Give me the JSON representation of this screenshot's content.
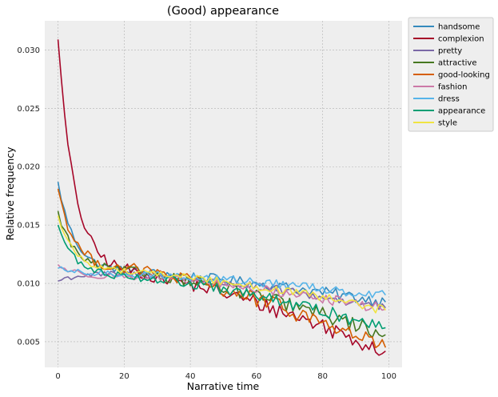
{
  "chart_data": {
    "type": "line",
    "title": "(Good) appearance",
    "xlabel": "Narrative time",
    "ylabel": "Relative frequency",
    "xlim": [
      -4,
      104
    ],
    "ylim": [
      0.0028,
      0.0325
    ],
    "x_ticks": [
      0,
      20,
      40,
      60,
      80,
      100
    ],
    "y_ticks": [
      0.005,
      0.01,
      0.015,
      0.02,
      0.025,
      0.03
    ],
    "x_tick_labels": [
      "0",
      "20",
      "40",
      "60",
      "80",
      "100"
    ],
    "y_tick_labels": [
      "0.005",
      "0.010",
      "0.015",
      "0.020",
      "0.025",
      "0.030"
    ],
    "grid": true,
    "legend_position": "outside-top-right",
    "series": [
      {
        "name": "handsome",
        "color": "#348abd",
        "start": 0.0187,
        "mid": 0.011,
        "end": 0.0084,
        "noise": 0.00045
      },
      {
        "name": "complexion",
        "color": "#a60628",
        "start": 0.0309,
        "mid": 0.0109,
        "end": 0.0042,
        "noise": 0.0007
      },
      {
        "name": "pretty",
        "color": "#7a68a6",
        "start": 0.0102,
        "mid": 0.0108,
        "end": 0.0079,
        "noise": 0.0004
      },
      {
        "name": "attractive",
        "color": "#467821",
        "start": 0.0162,
        "mid": 0.011,
        "end": 0.0056,
        "noise": 0.0006
      },
      {
        "name": "good-looking",
        "color": "#d55e00",
        "start": 0.0181,
        "mid": 0.0112,
        "end": 0.0045,
        "noise": 0.0007
      },
      {
        "name": "fashion",
        "color": "#cc79a7",
        "start": 0.0116,
        "mid": 0.0106,
        "end": 0.0078,
        "noise": 0.0004
      },
      {
        "name": "dress",
        "color": "#56b4e9",
        "start": 0.0113,
        "mid": 0.0108,
        "end": 0.009,
        "noise": 0.0004
      },
      {
        "name": "appearance",
        "color": "#009e73",
        "start": 0.015,
        "mid": 0.0106,
        "end": 0.0062,
        "noise": 0.0005
      },
      {
        "name": "style",
        "color": "#f0e442",
        "start": 0.0158,
        "mid": 0.011,
        "end": 0.0077,
        "noise": 0.00035
      }
    ]
  }
}
